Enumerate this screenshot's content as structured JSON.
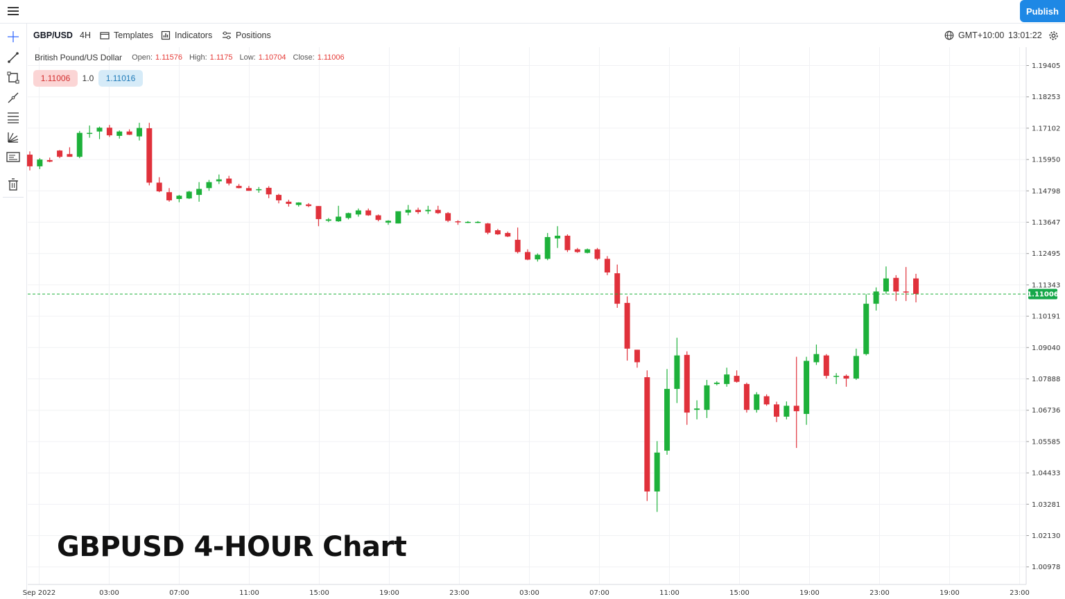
{
  "topbar": {
    "publish_label": "Publish"
  },
  "toolbar": {
    "symbol": "GBP/USD",
    "interval": "4H",
    "templates_label": "Templates",
    "indicators_label": "Indicators",
    "positions_label": "Positions",
    "timezone": "GMT+10:00",
    "clock": "13:01:22"
  },
  "left_tools": [
    "crosshair-icon",
    "trend-line-icon",
    "rectangle-icon",
    "brush-icon",
    "fib-retracement-icon",
    "gann-fan-icon",
    "text-note-icon",
    "trash-icon"
  ],
  "legend": {
    "name": "British Pound/US Dollar",
    "open_label": "Open:",
    "open": "1.11576",
    "high_label": "High:",
    "high": "1.1175",
    "low_label": "Low:",
    "low": "1.10704",
    "close_label": "Close:",
    "close": "1.11006"
  },
  "trade": {
    "sell_price": "1.11006",
    "spread": "1.0",
    "buy_price": "1.11016"
  },
  "watermark": "GBPUSD 4-HOUR Chart",
  "colors": {
    "up": "#1db13a",
    "down": "#e0313b",
    "accent": "#1e88e5",
    "price_line": "#26a69a"
  },
  "chart_data": {
    "type": "candlestick",
    "y_ticks": [
      "1.19405",
      "1.18253",
      "1.17102",
      "1.15950",
      "1.14798",
      "1.13647",
      "1.12495",
      "1.11343",
      "1.10191",
      "1.09040",
      "1.07888",
      "1.06736",
      "1.05585",
      "1.04433",
      "1.03281",
      "1.02130",
      "1.00978"
    ],
    "x_ticks": [
      "Sep 2022",
      "03:00",
      "07:00",
      "11:00",
      "15:00",
      "19:00",
      "23:00",
      "03:00",
      "07:00",
      "11:00",
      "15:00",
      "19:00",
      "23:00",
      "19:00",
      "23:00"
    ],
    "current_price": "1.11006",
    "ylim": [
      1.0043,
      1.1993
    ],
    "candles": [
      {
        "o": 1.1613,
        "h": 1.1625,
        "l": 1.1555,
        "c": 1.157
      },
      {
        "o": 1.157,
        "h": 1.16,
        "l": 1.156,
        "c": 1.1595
      },
      {
        "o": 1.1593,
        "h": 1.1602,
        "l": 1.1585,
        "c": 1.1587
      },
      {
        "o": 1.1628,
        "h": 1.163,
        "l": 1.16,
        "c": 1.1605
      },
      {
        "o": 1.1615,
        "h": 1.164,
        "l": 1.1605,
        "c": 1.1605
      },
      {
        "o": 1.1605,
        "h": 1.17,
        "l": 1.16,
        "c": 1.1693
      },
      {
        "o": 1.169,
        "h": 1.172,
        "l": 1.1675,
        "c": 1.1693
      },
      {
        "o": 1.1698,
        "h": 1.1716,
        "l": 1.167,
        "c": 1.1712
      },
      {
        "o": 1.1712,
        "h": 1.1722,
        "l": 1.1678,
        "c": 1.1684
      },
      {
        "o": 1.1682,
        "h": 1.1702,
        "l": 1.1672,
        "c": 1.1698
      },
      {
        "o": 1.1698,
        "h": 1.1706,
        "l": 1.1685,
        "c": 1.1686
      },
      {
        "o": 1.168,
        "h": 1.173,
        "l": 1.1665,
        "c": 1.1711
      },
      {
        "o": 1.171,
        "h": 1.173,
        "l": 1.15,
        "c": 1.151
      },
      {
        "o": 1.151,
        "h": 1.153,
        "l": 1.1475,
        "c": 1.1478
      },
      {
        "o": 1.1475,
        "h": 1.149,
        "l": 1.144,
        "c": 1.1445
      },
      {
        "o": 1.145,
        "h": 1.1465,
        "l": 1.1438,
        "c": 1.1462
      },
      {
        "o": 1.1452,
        "h": 1.148,
        "l": 1.145,
        "c": 1.1477
      },
      {
        "o": 1.1465,
        "h": 1.1512,
        "l": 1.144,
        "c": 1.1487
      },
      {
        "o": 1.149,
        "h": 1.152,
        "l": 1.148,
        "c": 1.1512
      },
      {
        "o": 1.1515,
        "h": 1.154,
        "l": 1.1505,
        "c": 1.1522
      },
      {
        "o": 1.1525,
        "h": 1.1535,
        "l": 1.15,
        "c": 1.1507
      },
      {
        "o": 1.1498,
        "h": 1.1505,
        "l": 1.1489,
        "c": 1.149
      },
      {
        "o": 1.149,
        "h": 1.1498,
        "l": 1.148,
        "c": 1.148
      },
      {
        "o": 1.1483,
        "h": 1.1494,
        "l": 1.1473,
        "c": 1.1486
      },
      {
        "o": 1.1491,
        "h": 1.1497,
        "l": 1.1453,
        "c": 1.1467
      },
      {
        "o": 1.1465,
        "h": 1.1469,
        "l": 1.1434,
        "c": 1.1445
      },
      {
        "o": 1.144,
        "h": 1.1447,
        "l": 1.1422,
        "c": 1.1432
      },
      {
        "o": 1.1428,
        "h": 1.1438,
        "l": 1.1422,
        "c": 1.1437
      },
      {
        "o": 1.143,
        "h": 1.1435,
        "l": 1.142,
        "c": 1.1424
      },
      {
        "o": 1.1424,
        "h": 1.1424,
        "l": 1.135,
        "c": 1.1376
      },
      {
        "o": 1.137,
        "h": 1.138,
        "l": 1.1365,
        "c": 1.1375
      },
      {
        "o": 1.1368,
        "h": 1.1425,
        "l": 1.1366,
        "c": 1.1385
      },
      {
        "o": 1.138,
        "h": 1.14,
        "l": 1.1375,
        "c": 1.1398
      },
      {
        "o": 1.1393,
        "h": 1.1415,
        "l": 1.1385,
        "c": 1.1408
      },
      {
        "o": 1.1408,
        "h": 1.1415,
        "l": 1.1388,
        "c": 1.139
      },
      {
        "o": 1.139,
        "h": 1.1393,
        "l": 1.1368,
        "c": 1.1373
      },
      {
        "o": 1.1363,
        "h": 1.1372,
        "l": 1.1355,
        "c": 1.137
      },
      {
        "o": 1.136,
        "h": 1.1398,
        "l": 1.136,
        "c": 1.1405
      },
      {
        "o": 1.14,
        "h": 1.1428,
        "l": 1.139,
        "c": 1.141
      },
      {
        "o": 1.141,
        "h": 1.1418,
        "l": 1.1395,
        "c": 1.1402
      },
      {
        "o": 1.1405,
        "h": 1.1425,
        "l": 1.1395,
        "c": 1.141
      },
      {
        "o": 1.141,
        "h": 1.1425,
        "l": 1.1395,
        "c": 1.1398
      },
      {
        "o": 1.1398,
        "h": 1.1402,
        "l": 1.1365,
        "c": 1.137
      },
      {
        "o": 1.1368,
        "h": 1.1372,
        "l": 1.1355,
        "c": 1.1366
      },
      {
        "o": 1.1366,
        "h": 1.1369,
        "l": 1.1361,
        "c": 1.1366
      },
      {
        "o": 1.1366,
        "h": 1.1369,
        "l": 1.1361,
        "c": 1.1366
      },
      {
        "o": 1.136,
        "h": 1.1362,
        "l": 1.132,
        "c": 1.1326
      },
      {
        "o": 1.1335,
        "h": 1.134,
        "l": 1.1318,
        "c": 1.132
      },
      {
        "o": 1.1325,
        "h": 1.133,
        "l": 1.131,
        "c": 1.1312
      },
      {
        "o": 1.13,
        "h": 1.1345,
        "l": 1.125,
        "c": 1.1255
      },
      {
        "o": 1.1255,
        "h": 1.1265,
        "l": 1.1225,
        "c": 1.1227
      },
      {
        "o": 1.1228,
        "h": 1.125,
        "l": 1.122,
        "c": 1.1245
      },
      {
        "o": 1.123,
        "h": 1.1325,
        "l": 1.1225,
        "c": 1.131
      },
      {
        "o": 1.1305,
        "h": 1.135,
        "l": 1.127,
        "c": 1.1315
      },
      {
        "o": 1.1315,
        "h": 1.132,
        "l": 1.1255,
        "c": 1.1262
      },
      {
        "o": 1.1265,
        "h": 1.127,
        "l": 1.1252,
        "c": 1.1255
      },
      {
        "o": 1.1252,
        "h": 1.1268,
        "l": 1.125,
        "c": 1.1265
      },
      {
        "o": 1.1265,
        "h": 1.127,
        "l": 1.1225,
        "c": 1.123
      },
      {
        "o": 1.123,
        "h": 1.124,
        "l": 1.117,
        "c": 1.118
      },
      {
        "o": 1.1177,
        "h": 1.1209,
        "l": 1.105,
        "c": 1.1065
      },
      {
        "o": 1.1068,
        "h": 1.1092,
        "l": 1.0856,
        "c": 1.09
      },
      {
        "o": 1.0896,
        "h": 1.0896,
        "l": 1.083,
        "c": 1.085
      },
      {
        "o": 1.0795,
        "h": 1.082,
        "l": 1.034,
        "c": 1.0375
      },
      {
        "o": 1.0375,
        "h": 1.056,
        "l": 1.03,
        "c": 1.0518
      },
      {
        "o": 1.0525,
        "h": 1.0825,
        "l": 1.051,
        "c": 1.0752
      },
      {
        "o": 1.0752,
        "h": 1.094,
        "l": 1.07,
        "c": 1.0875
      },
      {
        "o": 1.0877,
        "h": 1.089,
        "l": 1.062,
        "c": 1.0665
      },
      {
        "o": 1.0675,
        "h": 1.071,
        "l": 1.064,
        "c": 1.068
      },
      {
        "o": 1.0675,
        "h": 1.0785,
        "l": 1.0645,
        "c": 1.0765
      },
      {
        "o": 1.077,
        "h": 1.078,
        "l": 1.0765,
        "c": 1.0775
      },
      {
        "o": 1.077,
        "h": 1.083,
        "l": 1.076,
        "c": 1.0805
      },
      {
        "o": 1.08,
        "h": 1.082,
        "l": 1.0775,
        "c": 1.0778
      },
      {
        "o": 1.077,
        "h": 1.0775,
        "l": 1.0665,
        "c": 1.0675
      },
      {
        "o": 1.0675,
        "h": 1.074,
        "l": 1.0665,
        "c": 1.0732
      },
      {
        "o": 1.0725,
        "h": 1.0732,
        "l": 1.069,
        "c": 1.0695
      },
      {
        "o": 1.0695,
        "h": 1.0705,
        "l": 1.063,
        "c": 1.065
      },
      {
        "o": 1.065,
        "h": 1.0706,
        "l": 1.064,
        "c": 1.069
      },
      {
        "o": 1.069,
        "h": 1.087,
        "l": 1.0535,
        "c": 1.067
      },
      {
        "o": 1.066,
        "h": 1.087,
        "l": 1.062,
        "c": 1.0855
      },
      {
        "o": 1.085,
        "h": 1.0915,
        "l": 1.084,
        "c": 1.088
      },
      {
        "o": 1.0875,
        "h": 1.088,
        "l": 1.079,
        "c": 1.08
      },
      {
        "o": 1.08,
        "h": 1.081,
        "l": 1.077,
        "c": 1.08
      },
      {
        "o": 1.08,
        "h": 1.0805,
        "l": 1.076,
        "c": 1.079
      },
      {
        "o": 1.079,
        "h": 1.09,
        "l": 1.0785,
        "c": 1.0873
      },
      {
        "o": 1.088,
        "h": 1.11,
        "l": 1.0875,
        "c": 1.1065
      },
      {
        "o": 1.1065,
        "h": 1.1125,
        "l": 1.104,
        "c": 1.111
      },
      {
        "o": 1.111,
        "h": 1.1202,
        "l": 1.11,
        "c": 1.1158
      },
      {
        "o": 1.116,
        "h": 1.117,
        "l": 1.1075,
        "c": 1.111
      },
      {
        "o": 1.111,
        "h": 1.12,
        "l": 1.1075,
        "c": 1.1107
      },
      {
        "o": 1.1158,
        "h": 1.1175,
        "l": 1.107,
        "c": 1.1101
      }
    ]
  }
}
